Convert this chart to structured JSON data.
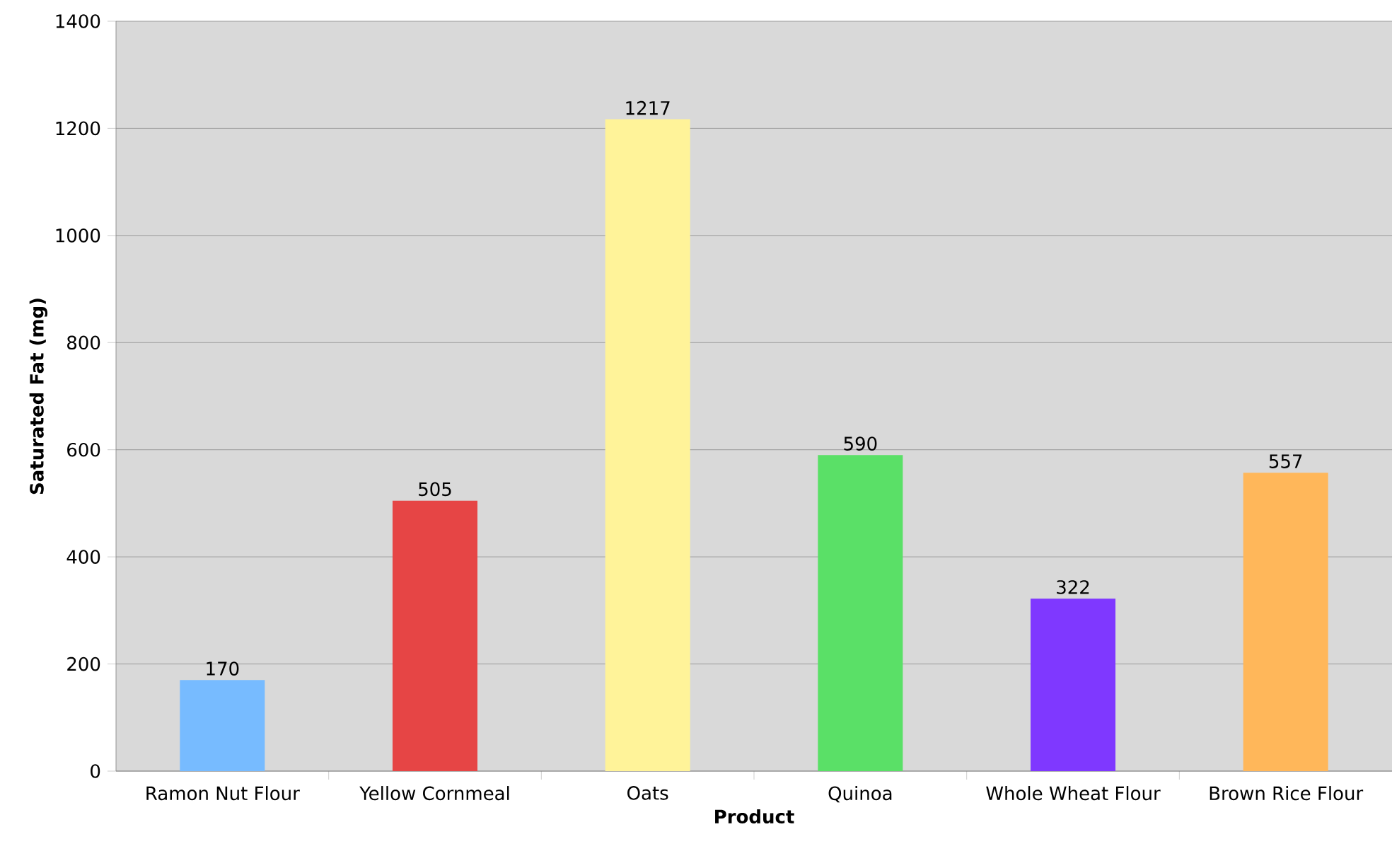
{
  "chart_data": {
    "type": "bar",
    "xlabel": "Product",
    "ylabel": "Saturated Fat (mg)",
    "categories": [
      "Ramon Nut Flour",
      "Yellow Cornmeal",
      "Oats",
      "Quinoa",
      "Whole Wheat Flour",
      "Brown Rice Flour"
    ],
    "values": [
      170,
      505,
      1217,
      590,
      322,
      557
    ],
    "colors": [
      "#77bbff",
      "#e64545",
      "#fff399",
      "#5ae067",
      "#7f38ff",
      "#ffb75a"
    ],
    "ylim": [
      0,
      1400
    ],
    "yticks": [
      0,
      200,
      400,
      600,
      800,
      1000,
      1200,
      1400
    ],
    "grid": "y",
    "data_labels": true
  }
}
